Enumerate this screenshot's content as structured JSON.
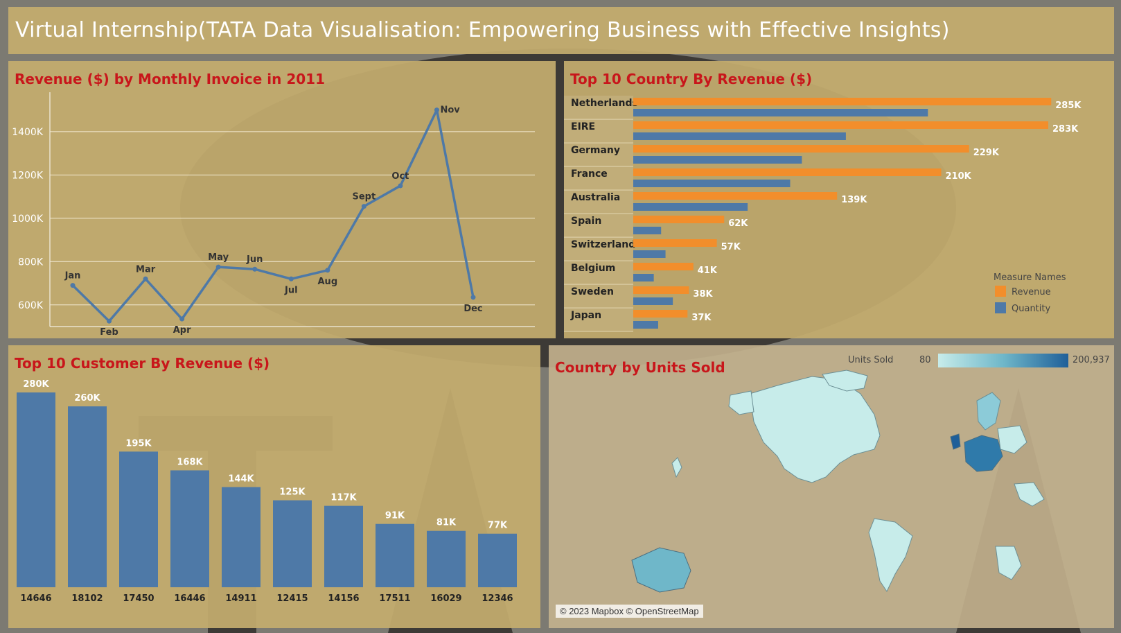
{
  "header": {
    "title": "Virtual Internship(TATA Data Visualisation: Empowering Business with Effective Insights)"
  },
  "colors": {
    "revenue": "#f28e2b",
    "quantity": "#4e79a7",
    "title_red": "#c8161b",
    "panel_bg": "#c4ac6e",
    "map_low": "#c7ecea",
    "map_high": "#1f5f99"
  },
  "chart_data": [
    {
      "id": "monthly",
      "type": "line",
      "title": "Revenue ($) by Monthly Invoice in 2011",
      "categories": [
        "Jan",
        "Feb",
        "Mar",
        "Apr",
        "May",
        "Jun",
        "Jul",
        "Aug",
        "Sept",
        "Oct",
        "Nov",
        "Dec"
      ],
      "values": [
        690000,
        525000,
        720000,
        535000,
        775000,
        765000,
        720000,
        760000,
        1055000,
        1150000,
        1500000,
        635000
      ],
      "ylim": [
        500000,
        1550000
      ],
      "yticks": [
        600000,
        800000,
        1000000,
        1200000,
        1400000
      ],
      "ytick_labels": [
        "600K",
        "800K",
        "1000K",
        "1200K",
        "1400K"
      ],
      "label_position": [
        "above",
        "below",
        "above",
        "below",
        "above",
        "above",
        "below",
        "below",
        "above",
        "above",
        "right",
        "below"
      ],
      "grid": true
    },
    {
      "id": "country",
      "type": "bar",
      "orientation": "horizontal",
      "title": "Top 10 Country By Revenue ($)",
      "categories": [
        "Netherlands",
        "EIRE",
        "Germany",
        "France",
        "Australia",
        "Spain",
        "Switzerland",
        "Belgium",
        "Sweden",
        "Japan"
      ],
      "series": [
        {
          "name": "Revenue",
          "values": [
            285000,
            283000,
            229000,
            210000,
            139000,
            62000,
            57000,
            41000,
            38000,
            37000
          ],
          "labels": [
            "285K",
            "283K",
            "229K",
            "210K",
            "139K",
            "62K",
            "57K",
            "41K",
            "38K",
            "37K"
          ]
        },
        {
          "name": "Quantity",
          "values": [
            200937,
            145000,
            115000,
            107000,
            78000,
            19000,
            22000,
            14000,
            27000,
            17000
          ]
        }
      ],
      "xlim": [
        0,
        300000
      ],
      "legend": {
        "title": "Measure Names",
        "placement": "right"
      }
    },
    {
      "id": "customer",
      "type": "bar",
      "title": "Top 10 Customer By Revenue ($)",
      "categories": [
        "14646",
        "18102",
        "17450",
        "16446",
        "14911",
        "12415",
        "14156",
        "17511",
        "16029",
        "12346"
      ],
      "values": [
        280000,
        260000,
        195000,
        168000,
        144000,
        125000,
        117000,
        91000,
        81000,
        77000
      ],
      "labels": [
        "280K",
        "260K",
        "195K",
        "168K",
        "144K",
        "125K",
        "117K",
        "91K",
        "81K",
        "77K"
      ],
      "ylim": [
        0,
        300000
      ]
    },
    {
      "id": "map",
      "type": "map",
      "title": "Country by Units Sold",
      "legend": {
        "title": "Units Sold",
        "min_label": "80",
        "max_label": "200,937"
      },
      "attribution": "© 2023 Mapbox © OpenStreetMap"
    }
  ]
}
